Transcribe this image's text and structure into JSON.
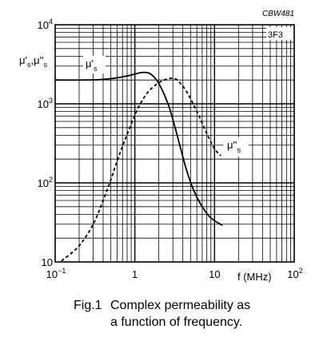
{
  "chart_data": {
    "type": "line",
    "code": "CBW481",
    "material": "3F3",
    "xlabel": "f  (MHz)",
    "ylabel": "μ's ,μ''s",
    "x_scale": "log",
    "y_scale": "log",
    "xlim": [
      0.1,
      100
    ],
    "ylim": [
      10,
      10000
    ],
    "grid": true,
    "x_ticks": [
      {
        "value": 0.1,
        "base": "10",
        "exp": "−1"
      },
      {
        "value": 1,
        "base": "1",
        "exp": ""
      },
      {
        "value": 10,
        "base": "10",
        "exp": ""
      },
      {
        "value": 100,
        "base": "10",
        "exp": "2"
      }
    ],
    "y_ticks": [
      {
        "value": 10,
        "base": "10",
        "exp": ""
      },
      {
        "value": 100,
        "base": "10",
        "exp": "2"
      },
      {
        "value": 1000,
        "base": "10",
        "exp": "3"
      },
      {
        "value": 10000,
        "base": "10",
        "exp": "4"
      }
    ],
    "series": [
      {
        "name": "μ's",
        "style": "solid",
        "points": [
          [
            0.1,
            2000
          ],
          [
            0.3,
            2010
          ],
          [
            0.5,
            2080
          ],
          [
            0.8,
            2250
          ],
          [
            1.2,
            2480
          ],
          [
            1.5,
            2450
          ],
          [
            1.8,
            2100
          ],
          [
            2.2,
            1500
          ],
          [
            2.7,
            900
          ],
          [
            3.2,
            500
          ],
          [
            3.8,
            260
          ],
          [
            4.5,
            140
          ],
          [
            5.5,
            80
          ],
          [
            7,
            50
          ],
          [
            9,
            36
          ],
          [
            12.5,
            29
          ]
        ]
      },
      {
        "name": "μ''s",
        "style": "dashed",
        "points": [
          [
            0.12,
            10.3
          ],
          [
            0.2,
            16
          ],
          [
            0.3,
            30
          ],
          [
            0.4,
            60
          ],
          [
            0.5,
            110
          ],
          [
            0.6,
            190
          ],
          [
            0.7,
            290
          ],
          [
            0.8,
            410
          ],
          [
            1.0,
            720
          ],
          [
            1.2,
            1050
          ],
          [
            1.5,
            1450
          ],
          [
            2.0,
            1850
          ],
          [
            2.5,
            2050
          ],
          [
            3.0,
            2100
          ],
          [
            3.5,
            1950
          ],
          [
            4.5,
            1400
          ],
          [
            6,
            800
          ],
          [
            8,
            420
          ],
          [
            10,
            270
          ],
          [
            12,
            220
          ]
        ]
      }
    ]
  },
  "caption": {
    "figure": "Fig.1",
    "line1": "Complex permeability as",
    "line2": "a function of frequency."
  }
}
